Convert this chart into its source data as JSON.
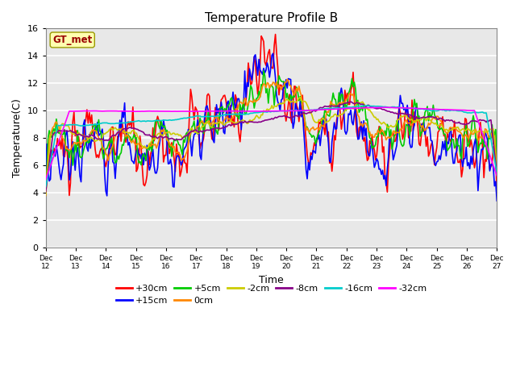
{
  "title": "Temperature Profile B",
  "xlabel": "Time",
  "ylabel": "Temperature(C)",
  "ylim": [
    0,
    16
  ],
  "yticks": [
    0,
    2,
    4,
    6,
    8,
    10,
    12,
    14,
    16
  ],
  "xtick_labels": [
    "Dec 12",
    "Dec 13",
    "Dec 14",
    "Dec 15",
    "Dec 16",
    "Dec 17",
    "Dec 18",
    "Dec 19",
    "Dec 20",
    "Dec 21",
    "Dec 22",
    "Dec 23",
    "Dec 24",
    "Dec 25",
    "Dec 26",
    "Dec 27"
  ],
  "series": [
    {
      "label": "+30cm",
      "color": "#FF0000",
      "lw": 1.2
    },
    {
      "label": "+15cm",
      "color": "#0000FF",
      "lw": 1.2
    },
    {
      "label": "+5cm",
      "color": "#00CC00",
      "lw": 1.2
    },
    {
      "label": "0cm",
      "color": "#FF8800",
      "lw": 1.2
    },
    {
      "label": "-2cm",
      "color": "#CCCC00",
      "lw": 1.2
    },
    {
      "label": "-8cm",
      "color": "#880088",
      "lw": 1.2
    },
    {
      "label": "-16cm",
      "color": "#00CCCC",
      "lw": 1.2
    },
    {
      "label": "-32cm",
      "color": "#FF00FF",
      "lw": 1.2
    }
  ],
  "bg_color": "#E8E8E8",
  "title_fontsize": 11,
  "axis_label_fontsize": 9,
  "tick_fontsize": 8
}
